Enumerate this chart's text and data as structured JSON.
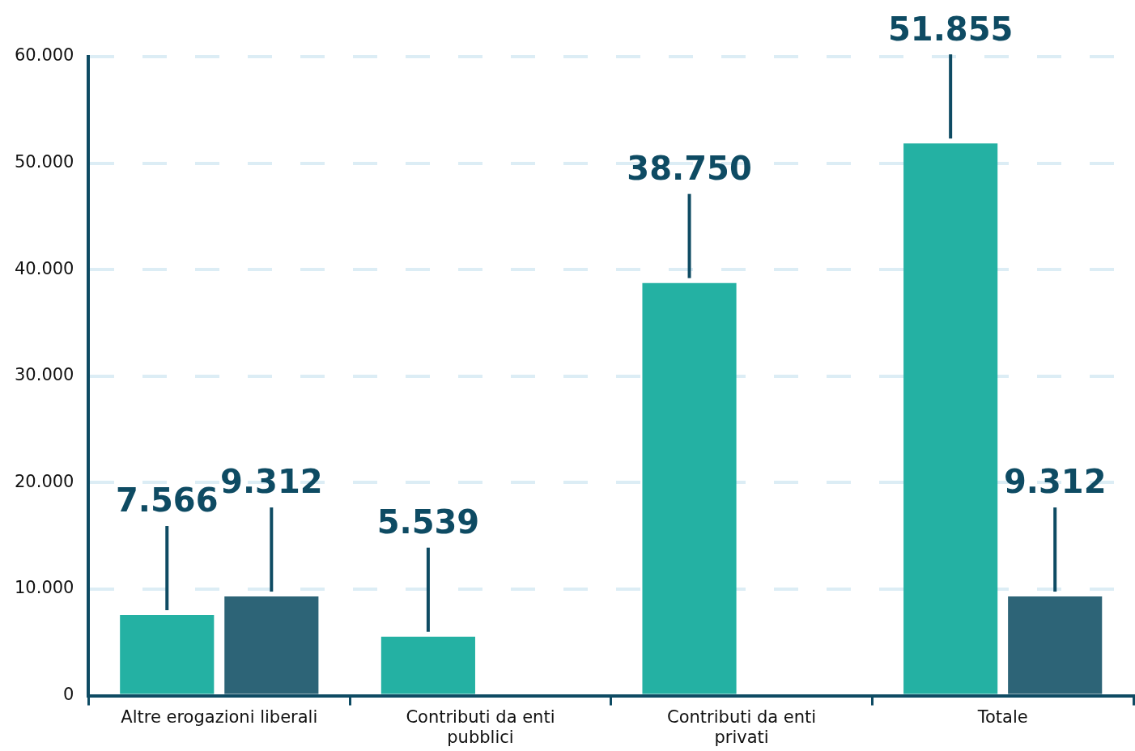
{
  "chart_data": {
    "type": "bar",
    "categories": [
      "Altre erogazioni liberali",
      "Contributi da enti pubblici",
      "Contributi da enti privati",
      "Totale"
    ],
    "series": [
      {
        "color": "#24b1a3",
        "values": [
          7566,
          5539,
          38750,
          51855
        ],
        "value_labels": [
          "7.566",
          "5.539",
          "38.750",
          "51.855"
        ]
      },
      {
        "color": "#2d6477",
        "values": [
          9312,
          null,
          null,
          9312
        ],
        "value_labels": [
          "9.312",
          null,
          null,
          "9.312"
        ]
      }
    ],
    "ylim": [
      0,
      60000
    ],
    "yticks": [
      0,
      {
        "value": 10000,
        "label": "10.000"
      },
      {
        "value": 20000,
        "label": "20.000"
      },
      {
        "value": 30000,
        "label": "30.000"
      },
      {
        "value": 40000,
        "label": "40.000"
      },
      {
        "value": 50000,
        "label": "50.000"
      },
      {
        "value": 60000,
        "label": "60.000"
      }
    ],
    "grid": "y",
    "legend": false
  }
}
